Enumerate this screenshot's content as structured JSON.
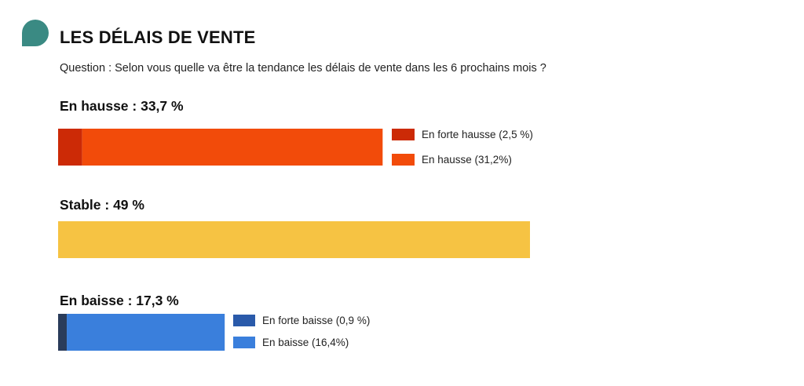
{
  "header": {
    "title": "LES DÉLAIS DE VENTE",
    "question": "Question : Selon vous quelle va être la tendance les délais de vente dans les 6 prochains mois ?"
  },
  "colors": {
    "icon": "#3a8a83"
  },
  "chart_data": {
    "type": "bar",
    "title": "LES DÉLAIS DE VENTE",
    "orientation": "horizontal",
    "stacked": true,
    "unit": "%",
    "xlim": [
      0,
      49
    ],
    "groups": [
      {
        "key": "hausse",
        "label": "En hausse : 33,7 %",
        "total": 33.7,
        "segments": [
          {
            "name": "En forte hausse (2,5 %)",
            "value": 2.5,
            "color": "#cc2a06"
          },
          {
            "name": "En hausse (31,2%)",
            "value": 31.2,
            "color": "#f24b0a"
          }
        ]
      },
      {
        "key": "stable",
        "label": "Stable : 49 %",
        "total": 49,
        "segments": [
          {
            "name": "Stable",
            "value": 49,
            "color": "#f6c343"
          }
        ]
      },
      {
        "key": "baisse",
        "label": "En baisse : 17,3 %",
        "total": 17.3,
        "segments": [
          {
            "name": "En forte baisse (0,9 %)",
            "value": 0.9,
            "color": "#2a3c5a"
          },
          {
            "name": "En baisse (16,4%)",
            "value": 16.4,
            "color": "#3a7fdc"
          }
        ]
      }
    ],
    "legend": [
      {
        "group": "hausse",
        "label": "En forte hausse (2,5 %)",
        "color": "#cc2a06"
      },
      {
        "group": "hausse",
        "label": "En hausse (31,2%)",
        "color": "#f24b0a"
      },
      {
        "group": "baisse",
        "label": "En forte baisse (0,9 %)",
        "color": "#2a5aaa"
      },
      {
        "group": "baisse",
        "label": "En baisse (16,4%)",
        "color": "#3a7fdc"
      }
    ]
  }
}
